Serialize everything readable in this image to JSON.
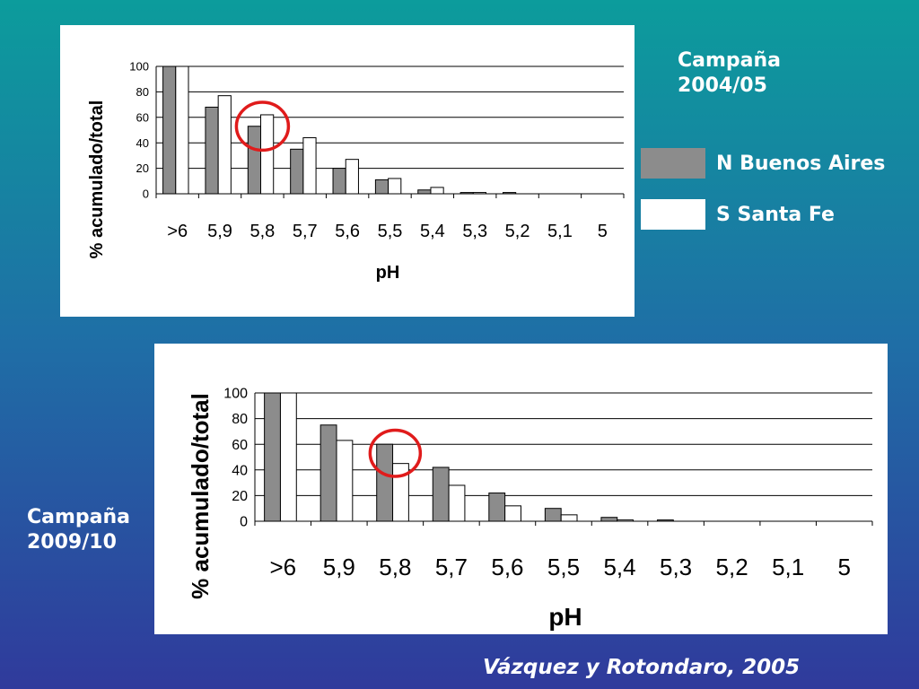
{
  "chart_data": [
    {
      "type": "bar",
      "ylabel": "% acumulado/total",
      "xlabel": "pH",
      "ylim": [
        0,
        100
      ],
      "yticks": [
        0,
        20,
        40,
        60,
        80,
        100
      ],
      "categories": [
        ">6",
        "5,9",
        "5,8",
        "5,7",
        "5,6",
        "5,5",
        "5,4",
        "5,3",
        "5,2",
        "5,1",
        "5"
      ],
      "series": [
        {
          "name": "N Buenos Aires",
          "color": "#8c8c8c",
          "values": [
            100,
            68,
            53,
            35,
            20,
            11,
            3,
            1,
            1,
            0,
            0
          ]
        },
        {
          "name": "S Santa Fe",
          "color": "#ffffff",
          "values": [
            100,
            77,
            62,
            44,
            27,
            12,
            5,
            1,
            0,
            0,
            0
          ]
        }
      ],
      "grid": true,
      "highlight": {
        "shape": "circle",
        "category": "5,8",
        "color": "#e01b1b"
      }
    },
    {
      "type": "bar",
      "ylabel": "% acumulado/total",
      "xlabel": "pH",
      "ylim": [
        0,
        100
      ],
      "yticks": [
        0,
        20,
        40,
        60,
        80,
        100
      ],
      "categories": [
        ">6",
        "5,9",
        "5,8",
        "5,7",
        "5,6",
        "5,5",
        "5,4",
        "5,3",
        "5,2",
        "5,1",
        "5"
      ],
      "series": [
        {
          "name": "N Buenos Aires",
          "color": "#8c8c8c",
          "values": [
            100,
            75,
            60,
            42,
            22,
            10,
            3,
            1,
            0,
            0,
            0
          ]
        },
        {
          "name": "S Santa Fe",
          "color": "#ffffff",
          "values": [
            100,
            63,
            45,
            28,
            12,
            5,
            1,
            0,
            0,
            0,
            0
          ]
        }
      ],
      "grid": true,
      "highlight": {
        "shape": "circle",
        "category": "5,8",
        "color": "#e01b1b"
      }
    }
  ],
  "campaigns": [
    {
      "line1": "Campaña",
      "line2": "2004/05"
    },
    {
      "line1": "Campaña",
      "line2": "2009/10"
    }
  ],
  "legend": [
    {
      "label": "N Buenos Aires",
      "color": "#8c8c8c"
    },
    {
      "label": "S Santa Fe",
      "color": "#ffffff"
    }
  ],
  "citation": "Vázquez y Rotondaro, 2005"
}
